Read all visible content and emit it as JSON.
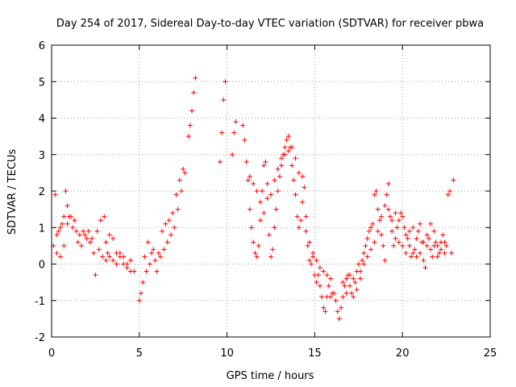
{
  "chart_data": {
    "type": "scatter",
    "title": "Day 254 of 2017, Sidereal Day-to-day VTEC variation (SDTVAR) for receiver pbwa",
    "xlabel": "GPS time / hours",
    "ylabel": "SDTVAR / TECUs",
    "xlim": [
      0,
      25
    ],
    "ylim": [
      -2,
      6
    ],
    "xticks": [
      "0",
      "5",
      "10",
      "15",
      "20",
      "25"
    ],
    "yticks": [
      "-2",
      "-1",
      "0",
      "1",
      "2",
      "3",
      "4",
      "5",
      "6"
    ],
    "grid": true,
    "marker": "+",
    "series": [
      {
        "name": "SDTVAR",
        "color": "#ff0000",
        "points": [
          [
            0.1,
            0.5
          ],
          [
            0.2,
            1.9
          ],
          [
            0.3,
            0.3
          ],
          [
            0.4,
            0.9
          ],
          [
            0.5,
            0.2
          ],
          [
            0.6,
            1.1
          ],
          [
            0.7,
            0.5
          ],
          [
            0.8,
            2.0
          ],
          [
            0.9,
            1.6
          ],
          [
            1.0,
            1.3
          ],
          [
            1.2,
            1.0
          ],
          [
            1.4,
            0.9
          ],
          [
            1.6,
            0.8
          ],
          [
            1.8,
            0.9
          ],
          [
            2.0,
            0.7
          ],
          [
            2.2,
            0.6
          ],
          [
            2.4,
            0.3
          ],
          [
            2.5,
            -0.3
          ],
          [
            2.6,
            0.9
          ],
          [
            2.8,
            1.2
          ],
          [
            3.0,
            1.3
          ],
          [
            3.1,
            0.6
          ],
          [
            3.2,
            0.3
          ],
          [
            3.3,
            0.8
          ],
          [
            3.5,
            0.7
          ],
          [
            3.7,
            0.3
          ],
          [
            3.9,
            0.3
          ],
          [
            4.1,
            0.2
          ],
          [
            4.3,
            0.0
          ],
          [
            4.5,
            -0.2
          ],
          [
            4.7,
            -0.2
          ],
          [
            0.3,
            0.8
          ],
          [
            0.5,
            1.0
          ],
          [
            0.7,
            1.3
          ],
          [
            0.9,
            1.1
          ],
          [
            1.1,
            1.3
          ],
          [
            1.3,
            1.2
          ],
          [
            1.5,
            0.6
          ],
          [
            1.7,
            0.5
          ],
          [
            1.9,
            0.8
          ],
          [
            2.1,
            0.9
          ],
          [
            2.3,
            0.7
          ],
          [
            2.7,
            0.4
          ],
          [
            2.9,
            0.2
          ],
          [
            3.1,
            0.1
          ],
          [
            3.3,
            0.2
          ],
          [
            3.5,
            0.1
          ],
          [
            3.7,
            0.0
          ],
          [
            3.9,
            0.2
          ],
          [
            4.1,
            0.0
          ],
          [
            4.3,
            -0.1
          ],
          [
            4.5,
            0.1
          ],
          [
            5.0,
            -1.0
          ],
          [
            5.1,
            -0.8
          ],
          [
            5.2,
            -0.5
          ],
          [
            5.3,
            0.2
          ],
          [
            5.5,
            0.6
          ],
          [
            5.7,
            0.3
          ],
          [
            5.9,
            0.1
          ],
          [
            6.0,
            -0.2
          ],
          [
            6.1,
            0.3
          ],
          [
            6.3,
            0.9
          ],
          [
            6.5,
            1.1
          ],
          [
            6.7,
            1.2
          ],
          [
            6.9,
            1.4
          ],
          [
            7.1,
            1.9
          ],
          [
            7.3,
            2.3
          ],
          [
            7.5,
            2.6
          ],
          [
            7.6,
            2.5
          ],
          [
            7.8,
            3.5
          ],
          [
            7.9,
            3.8
          ],
          [
            8.0,
            4.2
          ],
          [
            8.1,
            4.7
          ],
          [
            8.2,
            5.1
          ],
          [
            5.4,
            -0.2
          ],
          [
            5.6,
            0.0
          ],
          [
            5.8,
            0.4
          ],
          [
            6.2,
            0.2
          ],
          [
            6.4,
            0.4
          ],
          [
            6.6,
            0.6
          ],
          [
            6.8,
            0.8
          ],
          [
            7.0,
            1.0
          ],
          [
            7.2,
            1.5
          ],
          [
            7.4,
            2.0
          ],
          [
            9.6,
            2.8
          ],
          [
            9.7,
            3.6
          ],
          [
            9.8,
            4.5
          ],
          [
            9.9,
            5.0
          ],
          [
            10.3,
            3.0
          ],
          [
            10.4,
            3.6
          ],
          [
            10.5,
            3.9
          ],
          [
            10.9,
            3.8
          ],
          [
            11.0,
            3.4
          ],
          [
            11.1,
            2.8
          ],
          [
            11.2,
            2.3
          ],
          [
            11.3,
            1.5
          ],
          [
            11.4,
            1.0
          ],
          [
            11.5,
            0.6
          ],
          [
            11.6,
            0.3
          ],
          [
            11.7,
            0.2
          ],
          [
            11.8,
            0.5
          ],
          [
            11.9,
            1.2
          ],
          [
            12.0,
            2.0
          ],
          [
            12.1,
            2.7
          ],
          [
            12.2,
            2.8
          ],
          [
            12.3,
            1.8
          ],
          [
            12.4,
            0.8
          ],
          [
            12.5,
            0.2
          ],
          [
            12.6,
            0.4
          ],
          [
            12.7,
            1.0
          ],
          [
            12.8,
            1.5
          ],
          [
            12.9,
            2.0
          ],
          [
            13.0,
            2.4
          ],
          [
            13.1,
            2.7
          ],
          [
            13.2,
            3.0
          ],
          [
            13.3,
            3.2
          ],
          [
            13.4,
            3.4
          ],
          [
            13.5,
            3.5
          ],
          [
            13.6,
            3.2
          ],
          [
            13.7,
            2.7
          ],
          [
            13.8,
            2.3
          ],
          [
            13.9,
            1.9
          ],
          [
            14.0,
            1.3
          ],
          [
            14.1,
            1.0
          ],
          [
            14.2,
            1.2
          ],
          [
            14.3,
            2.4
          ],
          [
            14.4,
            2.1
          ],
          [
            14.5,
            0.9
          ],
          [
            14.6,
            0.5
          ],
          [
            14.7,
            0.1
          ],
          [
            14.8,
            0.0
          ],
          [
            14.9,
            0.3
          ],
          [
            15.0,
            -0.3
          ],
          [
            15.1,
            -0.5
          ],
          [
            15.2,
            -0.3
          ],
          [
            15.3,
            -0.6
          ],
          [
            15.4,
            -0.9
          ],
          [
            15.5,
            -1.2
          ],
          [
            15.6,
            -1.3
          ],
          [
            15.7,
            -0.9
          ],
          [
            15.8,
            -0.6
          ],
          [
            15.9,
            -0.9
          ],
          [
            16.0,
            -0.8
          ],
          [
            11.3,
            2.4
          ],
          [
            11.5,
            2.2
          ],
          [
            11.7,
            2.0
          ],
          [
            11.9,
            1.7
          ],
          [
            12.1,
            1.4
          ],
          [
            12.3,
            2.2
          ],
          [
            12.5,
            1.9
          ],
          [
            12.7,
            2.3
          ],
          [
            12.9,
            2.6
          ],
          [
            13.1,
            2.9
          ],
          [
            13.3,
            3.0
          ],
          [
            13.5,
            3.1
          ],
          [
            13.7,
            3.2
          ],
          [
            13.9,
            2.9
          ],
          [
            14.1,
            2.5
          ],
          [
            14.3,
            1.7
          ],
          [
            14.5,
            1.3
          ],
          [
            14.7,
            0.6
          ],
          [
            14.9,
            0.2
          ],
          [
            15.1,
            0.1
          ],
          [
            15.3,
            -0.1
          ],
          [
            15.5,
            -0.2
          ],
          [
            15.7,
            -0.3
          ],
          [
            15.9,
            -0.4
          ],
          [
            16.1,
            -0.8
          ],
          [
            16.2,
            -1.0
          ],
          [
            16.3,
            -1.3
          ],
          [
            16.4,
            -1.5
          ],
          [
            16.5,
            -1.2
          ],
          [
            16.6,
            -0.9
          ],
          [
            16.7,
            -0.6
          ],
          [
            16.8,
            -0.4
          ],
          [
            16.9,
            -0.3
          ],
          [
            17.0,
            -0.6
          ],
          [
            17.1,
            -0.8
          ],
          [
            17.2,
            -0.9
          ],
          [
            17.3,
            -0.5
          ],
          [
            17.4,
            -0.2
          ],
          [
            17.5,
            0.0
          ],
          [
            17.6,
            -0.2
          ],
          [
            17.7,
            0.1
          ],
          [
            17.8,
            0.3
          ],
          [
            17.9,
            0.5
          ],
          [
            18.0,
            0.7
          ],
          [
            18.1,
            0.9
          ],
          [
            18.2,
            1.0
          ],
          [
            18.3,
            1.1
          ],
          [
            18.4,
            1.9
          ],
          [
            18.5,
            2.0
          ],
          [
            18.6,
            1.5
          ],
          [
            18.7,
            1.2
          ],
          [
            18.8,
            0.8
          ],
          [
            18.9,
            0.5
          ],
          [
            19.0,
            0.1
          ],
          [
            19.1,
            1.9
          ],
          [
            19.2,
            2.2
          ],
          [
            19.3,
            1.3
          ],
          [
            19.4,
            0.9
          ],
          [
            19.5,
            0.5
          ],
          [
            19.6,
            0.7
          ],
          [
            19.7,
            1.0
          ],
          [
            19.8,
            1.2
          ],
          [
            19.9,
            1.4
          ],
          [
            20.0,
            1.3
          ],
          [
            20.1,
            1.0
          ],
          [
            20.2,
            0.8
          ],
          [
            20.3,
            0.7
          ],
          [
            20.4,
            0.5
          ],
          [
            20.5,
            0.2
          ],
          [
            20.6,
            0.3
          ],
          [
            20.7,
            0.4
          ],
          [
            20.8,
            0.7
          ],
          [
            20.9,
            0.9
          ],
          [
            21.0,
            1.1
          ],
          [
            21.1,
            0.6
          ],
          [
            21.2,
            0.1
          ],
          [
            21.3,
            -0.1
          ],
          [
            21.4,
            0.5
          ],
          [
            21.5,
            0.7
          ],
          [
            21.6,
            0.4
          ],
          [
            21.7,
            0.2
          ],
          [
            21.8,
            0.5
          ],
          [
            21.9,
            0.6
          ],
          [
            22.0,
            0.5
          ],
          [
            22.1,
            0.3
          ],
          [
            22.2,
            0.4
          ],
          [
            22.3,
            0.8
          ],
          [
            22.4,
            0.6
          ],
          [
            22.5,
            0.5
          ],
          [
            22.6,
            1.9
          ],
          [
            22.7,
            2.0
          ],
          [
            22.8,
            0.3
          ],
          [
            22.9,
            2.3
          ],
          [
            16.6,
            -0.5
          ],
          [
            16.8,
            -0.8
          ],
          [
            17.0,
            -0.3
          ],
          [
            17.2,
            -0.4
          ],
          [
            17.4,
            -0.7
          ],
          [
            17.6,
            -0.4
          ],
          [
            17.8,
            0.0
          ],
          [
            18.0,
            0.2
          ],
          [
            18.2,
            0.4
          ],
          [
            18.4,
            0.6
          ],
          [
            18.6,
            0.9
          ],
          [
            18.8,
            1.3
          ],
          [
            19.0,
            1.6
          ],
          [
            19.2,
            1.5
          ],
          [
            19.4,
            1.2
          ],
          [
            19.6,
            1.4
          ],
          [
            19.8,
            0.6
          ],
          [
            20.0,
            0.5
          ],
          [
            20.2,
            0.3
          ],
          [
            20.4,
            0.9
          ],
          [
            20.6,
            1.0
          ],
          [
            20.8,
            0.2
          ],
          [
            21.0,
            0.3
          ],
          [
            21.2,
            0.6
          ],
          [
            21.4,
            0.8
          ],
          [
            21.6,
            1.1
          ],
          [
            21.8,
            0.9
          ],
          [
            22.0,
            0.2
          ],
          [
            22.2,
            0.6
          ],
          [
            22.4,
            0.3
          ]
        ]
      }
    ]
  }
}
